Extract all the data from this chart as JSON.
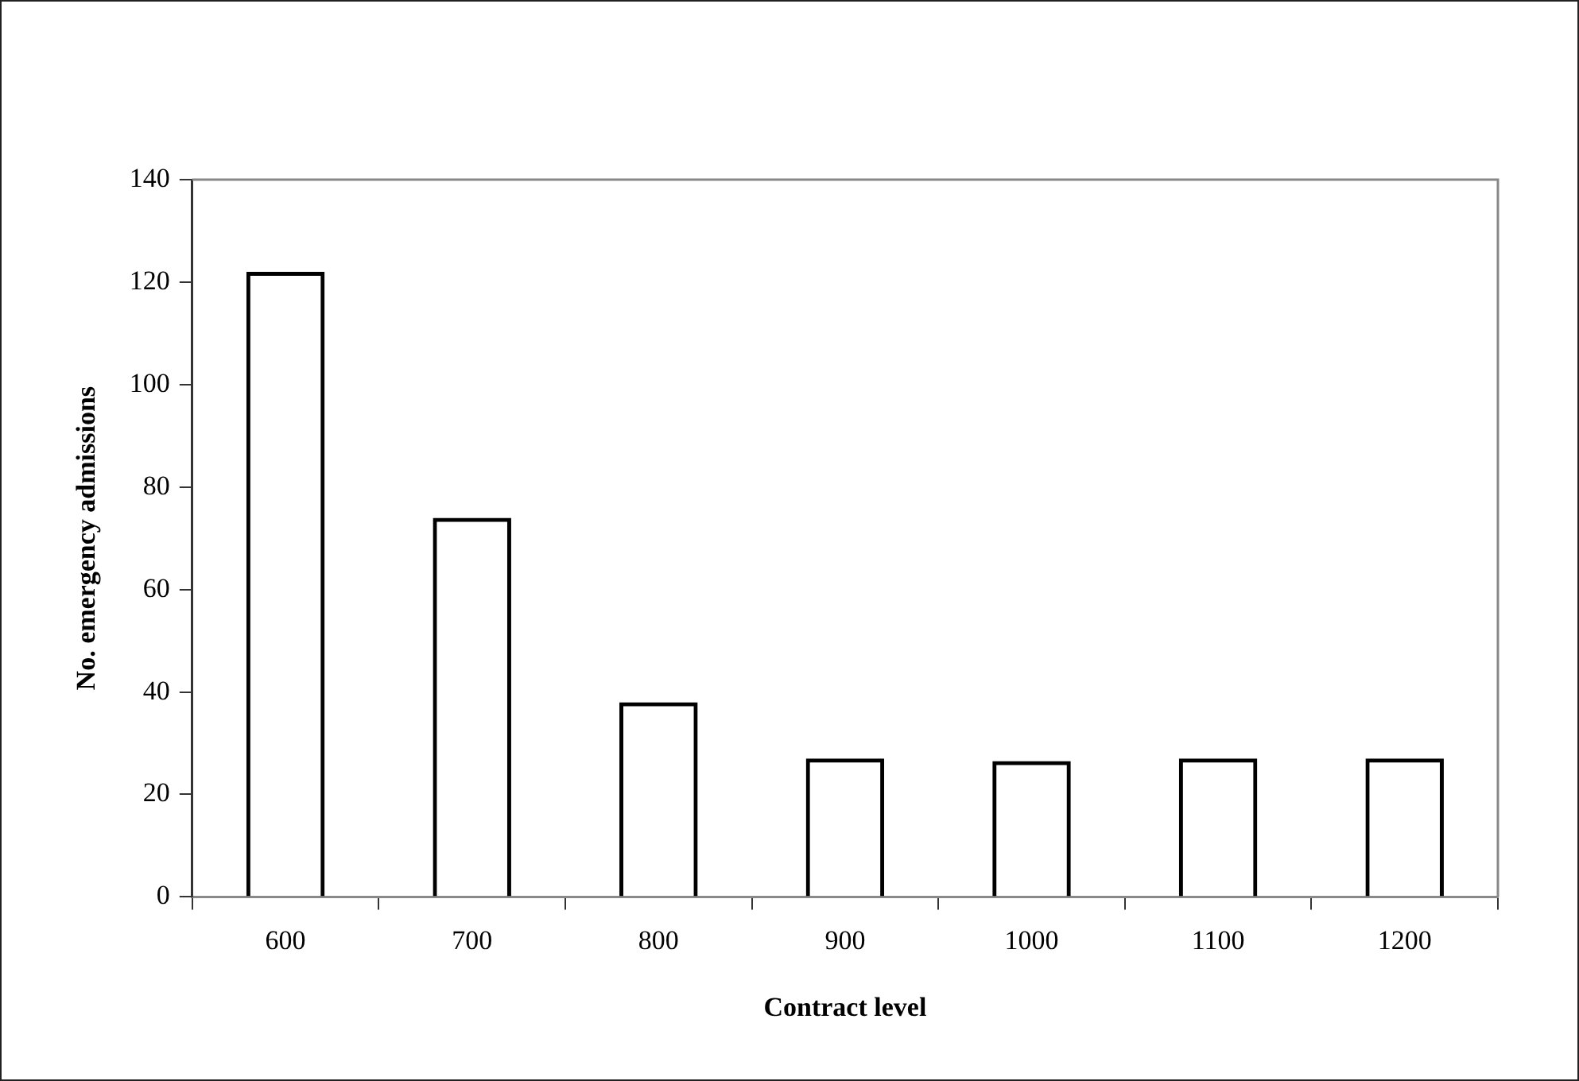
{
  "chart_data": {
    "type": "bar",
    "xlabel": "Contract level",
    "ylabel": "No. emergency admissions",
    "categories": [
      "600",
      "700",
      "800",
      "900",
      "1000",
      "1100",
      "1200"
    ],
    "values": [
      122,
      74,
      38,
      27,
      26.5,
      27,
      27
    ],
    "color": "#000000",
    "ylim": [
      0,
      140
    ],
    "yticks": [
      0,
      20,
      40,
      60,
      80,
      100,
      120,
      140
    ],
    "grid": false,
    "legend": false
  }
}
